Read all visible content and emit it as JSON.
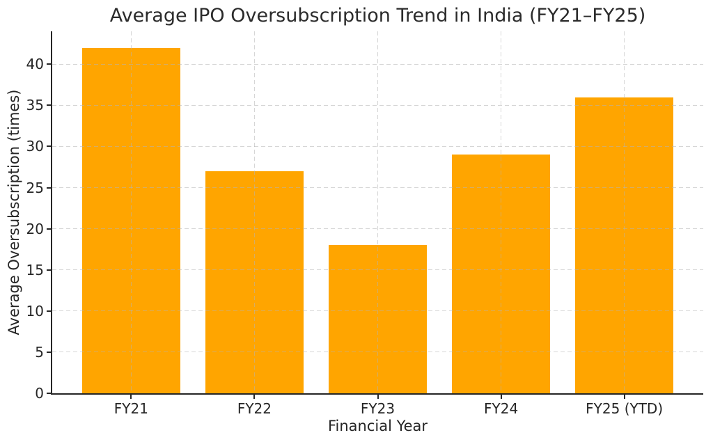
{
  "chart_data": {
    "type": "bar",
    "title": "Average IPO Oversubscription Trend in India (FY21–FY25)",
    "xlabel": "Financial Year",
    "ylabel": "Average Oversubscription (times)",
    "categories": [
      "FY21",
      "FY22",
      "FY23",
      "FY24",
      "FY25 (YTD)"
    ],
    "values": [
      42,
      27,
      18,
      29,
      36
    ],
    "ylim": [
      0,
      44
    ],
    "yticks": [
      0,
      5,
      10,
      15,
      20,
      25,
      30,
      35,
      40
    ],
    "bar_color": "#FFA500",
    "grid": {
      "visible": true,
      "linestyle": "dashed",
      "color": "#c8c8c8",
      "drawn_above_bars": true
    },
    "legend": "none",
    "background_color": "#ffffff",
    "spine_color": "#262626"
  }
}
